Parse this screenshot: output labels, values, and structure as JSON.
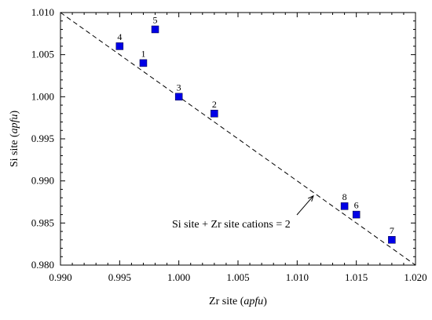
{
  "chart_data": {
    "type": "scatter",
    "title": "",
    "xlabel": {
      "prefix": "Zr site (",
      "italic": "apfu",
      "suffix": ")"
    },
    "ylabel": {
      "prefix": "Si site (",
      "italic": "apfu",
      "suffix": ")"
    },
    "xlim": [
      0.99,
      1.02
    ],
    "ylim": [
      0.98,
      1.01
    ],
    "x_ticks": [
      "0.990",
      "0.995",
      "1.000",
      "1.005",
      "1.010",
      "1.015",
      "1.020"
    ],
    "y_ticks": [
      "0.980",
      "0.985",
      "0.990",
      "0.995",
      "1.000",
      "1.005",
      "1.010"
    ],
    "x_tick_values": [
      0.99,
      0.995,
      1.0,
      1.005,
      1.01,
      1.015,
      1.02
    ],
    "y_tick_values": [
      0.98,
      0.985,
      0.99,
      0.995,
      1.0,
      1.005,
      1.01
    ],
    "grid": false,
    "marker_color": "#0000e6",
    "series": [
      {
        "points": [
          {
            "label": "1",
            "x": 0.997,
            "y": 1.004
          },
          {
            "label": "2",
            "x": 1.003,
            "y": 0.998
          },
          {
            "label": "3",
            "x": 1.0,
            "y": 1.0
          },
          {
            "label": "4",
            "x": 0.995,
            "y": 1.006
          },
          {
            "label": "5",
            "x": 0.998,
            "y": 1.008
          },
          {
            "label": "6",
            "x": 1.015,
            "y": 0.986
          },
          {
            "label": "7",
            "x": 1.018,
            "y": 0.983
          },
          {
            "label": "8",
            "x": 1.014,
            "y": 0.987
          }
        ]
      }
    ],
    "reference_line": {
      "x": [
        0.99,
        1.02
      ],
      "y": [
        1.01,
        0.98
      ],
      "style": "dashed",
      "annotation": "Si site + Zr site cations = 2",
      "arrow_target": [
        1.0115,
        0.9885
      ]
    }
  }
}
